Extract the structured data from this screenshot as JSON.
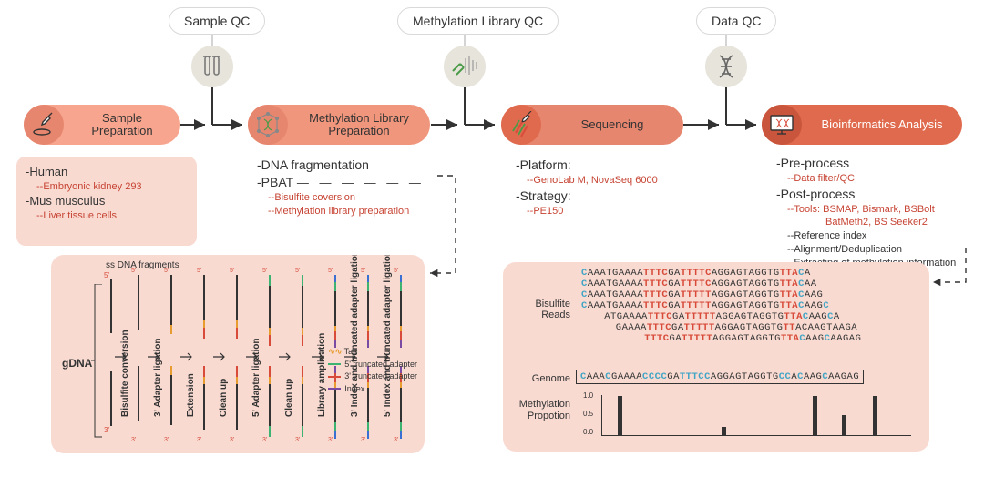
{
  "colors": {
    "coral_light": "#f7a58e",
    "coral_mid": "#f0967d",
    "coral_dark": "#e7866f",
    "coral_deep": "#e06a4d",
    "panel_bg": "#f8dad1",
    "qc_circle": "#e7e4db",
    "text": "#333333",
    "red_text": "#c74434",
    "blue_base": "#42a5c5",
    "red_base": "#d84b3a",
    "tail_orange": "#e89b2f",
    "adapter5": "#3cb371",
    "adapter3": "#d84b3a",
    "index_purple": "#7b4aa3",
    "index_blue": "#3b6fd1"
  },
  "qc": [
    {
      "label": "Sample QC"
    },
    {
      "label": "Methylation Library QC"
    },
    {
      "label": "Data QC"
    }
  ],
  "stages": [
    {
      "title": "Sample Preparation"
    },
    {
      "title": "Methylation Library Preparation"
    },
    {
      "title": "Sequencing"
    },
    {
      "title": "Bioinformatics Analysis"
    }
  ],
  "box_sample": {
    "line1": "-Human",
    "line1a": "--Embryonic kidney 293",
    "line2": "-Mus musculus",
    "line2a": "--Liver tissue cells"
  },
  "box_library": {
    "line1": "-DNA fragmentation",
    "line2": "-PBAT",
    "line2a": "--Bisulfite coversion",
    "line2b": "--Methylation library preparation"
  },
  "box_sequencing": {
    "line1": "-Platform:",
    "line1a": "--GenoLab M,  NovaSeq 6000",
    "line2": "-Strategy:",
    "line2a": "--PE150"
  },
  "box_bioinfo": {
    "line1": "-Pre-process",
    "line1a": "--Data filter/QC",
    "line2": "-Post-process",
    "line2a": "--Tools: BSMAP, Bismark, BSBolt",
    "line2a2": "BatMeth2, BS Seeker2",
    "line2b": "--Reference index",
    "line2c": "--Alignment/Deduplication",
    "line2d": "--Extracting of methylation information"
  },
  "pbat_panel": {
    "top_label": "ss DNA fragments",
    "gdna": "gDNA",
    "steps": [
      "Bisulfite conversion",
      "3' Adapter ligation",
      "Extension",
      "Clean up",
      "5' Adapter ligation",
      "Clean up",
      "Library amplication",
      "3' Index and truncated adapter ligation",
      "5' Index and truncated adapter ligation"
    ],
    "legend": {
      "tail": "Tail",
      "a5": "5' truncated adapter",
      "a3": "3' truncated adapter",
      "idx": "Index"
    },
    "five_prime": "5'",
    "three_prime": "3'"
  },
  "reads_panel": {
    "label_reads": "Bisulfite Reads",
    "label_genome": "Genome",
    "label_prop": "Methylation Propotion",
    "reads": [
      [
        [
          "C",
          "b"
        ],
        [
          "AAATGAAAA",
          ""
        ],
        [
          "TTTC",
          "r"
        ],
        [
          "GA",
          ""
        ],
        [
          "TTTTC",
          "r"
        ],
        [
          "AGGAGTAGGTG",
          ""
        ],
        [
          "TTA",
          "r"
        ],
        [
          "C",
          "b"
        ],
        [
          "A",
          ""
        ]
      ],
      [
        [
          "C",
          "b"
        ],
        [
          "AAATGAAAA",
          ""
        ],
        [
          "TTTC",
          "r"
        ],
        [
          "GA",
          ""
        ],
        [
          "TTTTC",
          "r"
        ],
        [
          "AGGAGTAGGTG",
          ""
        ],
        [
          "TTA",
          "r"
        ],
        [
          "C",
          "b"
        ],
        [
          "AA",
          ""
        ]
      ],
      [
        [
          "C",
          "b"
        ],
        [
          "AAATGAAAA",
          ""
        ],
        [
          "TTTC",
          "r"
        ],
        [
          "GA",
          ""
        ],
        [
          "TTTTT",
          "r"
        ],
        [
          "AGGAGTAGGTG",
          ""
        ],
        [
          "TTA",
          "r"
        ],
        [
          "C",
          "b"
        ],
        [
          "AAG",
          ""
        ]
      ],
      [
        [
          "C",
          "b"
        ],
        [
          "AAATGAAAA",
          ""
        ],
        [
          "TTTC",
          "r"
        ],
        [
          "GA",
          ""
        ],
        [
          "TTTTT",
          "r"
        ],
        [
          "AGGAGTAGGTG",
          ""
        ],
        [
          "TTA",
          "r"
        ],
        [
          "C",
          "b"
        ],
        [
          "AAG",
          ""
        ],
        [
          "C",
          "b"
        ]
      ],
      [
        [
          "ATGAAAA",
          ""
        ],
        [
          "TTTC",
          "r"
        ],
        [
          "GA",
          ""
        ],
        [
          "TTTTT",
          "r"
        ],
        [
          "AGGAGTAGGTG",
          ""
        ],
        [
          "TTA",
          "r"
        ],
        [
          "C",
          "b"
        ],
        [
          "AAG",
          ""
        ],
        [
          "C",
          "b"
        ],
        [
          "A",
          ""
        ]
      ],
      [
        [
          "GAAAA",
          ""
        ],
        [
          "TTTC",
          "r"
        ],
        [
          "GA",
          ""
        ],
        [
          "TTTTT",
          "r"
        ],
        [
          "AGGAGTAGGTG",
          ""
        ],
        [
          "TT",
          "r"
        ],
        [
          "ACAAGTAAGA",
          ""
        ]
      ],
      [
        [
          "TTTC",
          "r"
        ],
        [
          "GA",
          ""
        ],
        [
          "TTTTT",
          "r"
        ],
        [
          "AGGAGTAGGTG",
          ""
        ],
        [
          "TTA",
          "r"
        ],
        [
          "C",
          "b"
        ],
        [
          "AAG",
          ""
        ],
        [
          "C",
          "b"
        ],
        [
          "AAGAG",
          ""
        ]
      ]
    ],
    "genome": [
      [
        "C",
        "b"
      ],
      [
        "AAA",
        ""
      ],
      [
        "C",
        "b"
      ],
      [
        "GAAAA",
        ""
      ],
      [
        "CCCC",
        "b"
      ],
      [
        "GA",
        ""
      ],
      [
        "TTTCC",
        "b"
      ],
      [
        "AGGAGTAGGTG",
        ""
      ],
      [
        "CC",
        "b"
      ],
      [
        "A",
        ""
      ],
      [
        "C",
        "b"
      ],
      [
        "AAG",
        ""
      ],
      [
        "C",
        "b"
      ],
      [
        "AAGAG",
        ""
      ]
    ],
    "chart": {
      "ylim": [
        0,
        1.0
      ],
      "yticks": [
        "1.0",
        "0.5",
        "0.0"
      ],
      "bars": [
        {
          "x": 16,
          "h": 0.98
        },
        {
          "x": 130,
          "h": 0.2
        },
        {
          "x": 230,
          "h": 0.98
        },
        {
          "x": 262,
          "h": 0.5
        },
        {
          "x": 296,
          "h": 0.98
        }
      ],
      "bar_color": "#333333",
      "xwidth": 340
    }
  }
}
